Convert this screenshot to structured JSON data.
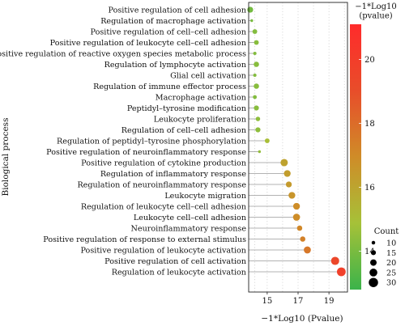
{
  "chart_data": {
    "type": "scatter",
    "subtype": "dot-lollipop",
    "title": "",
    "xlabel": "−1*Log10 (Pvalue)",
    "ylabel": "Biological process",
    "xlim": [
      13.8,
      20.2
    ],
    "xticks": [
      15,
      17,
      19
    ],
    "x_tick_labels": [
      "15",
      "17",
      "19"
    ],
    "grid": "dotted",
    "categories": [
      "Positive regulation of cell adhesion",
      "Regulation of macrophage activation",
      "Positive regulation of cell–cell adhesion",
      "Positive regulation of leukocyte cell–cell adhesion",
      "Positive regulation of reactive oxygen species metabolic process",
      "Regulation of lymphocyte activation",
      "Glial cell activation",
      "Regulation of immune effector process",
      "Macrophage activation",
      "Peptidyl–tyrosine modification",
      "Leukocyte proliferation",
      "Regulation of cell–cell adhesion",
      "Regulation of peptidyl–tyrosine phosphorylation",
      "Positive regulation of neuroinflammatory response",
      "Positive regulation of cytokine production",
      "Regulation of inflammatory response",
      "Regulation of neuroinflammatory response",
      "Leukocyte migration",
      "Regulation of leukocyte cell–cell adhesion",
      "Leukocyte cell–cell adhesion",
      "Neuroinflammatory response",
      "Positive regulation of response to external stimulus",
      "Positive regulation of leukocyte activation",
      "Positive regulation of cell activation",
      "Regulation of leukocyte activation"
    ],
    "values": [
      13.9,
      14.0,
      14.2,
      14.3,
      14.2,
      14.3,
      14.2,
      14.3,
      14.2,
      14.3,
      14.4,
      14.4,
      15.0,
      14.5,
      16.1,
      16.3,
      16.4,
      16.6,
      16.9,
      16.9,
      17.1,
      17.3,
      17.6,
      19.4,
      19.8
    ],
    "counts": [
      18,
      7,
      14,
      14,
      9,
      16,
      9,
      16,
      11,
      15,
      13,
      15,
      14,
      7,
      23,
      21,
      18,
      21,
      21,
      22,
      16,
      16,
      22,
      26,
      28
    ],
    "color_legend": {
      "title": "−1*Log10\n(pvalue)",
      "min": 12.8,
      "max": 21.1,
      "ticks": [
        14,
        16,
        18,
        20
      ],
      "tick_labels": [
        "14",
        "16",
        "18",
        "20"
      ],
      "colors": [
        "#3bb34a",
        "#a6c138",
        "#cf8c28",
        "#e84d2a",
        "#ff2b2b"
      ]
    },
    "size_legend": {
      "title": "Count",
      "values": [
        10,
        15,
        20,
        25,
        30
      ],
      "labels": [
        "10",
        "15",
        "20",
        "25",
        "30"
      ]
    }
  }
}
